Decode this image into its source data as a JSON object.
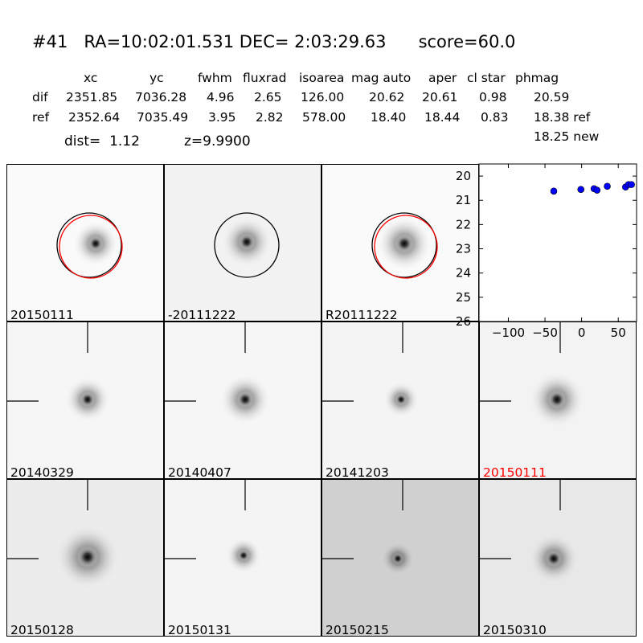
{
  "header": {
    "title": "#41   RA=10:02:01.531 DEC= 2:03:29.63      score=60.0",
    "columns": [
      "xc",
      "yc",
      "fwhm",
      "fluxrad",
      "isoarea",
      "mag auto",
      "aper",
      "cl star",
      "phmag"
    ],
    "rows": [
      {
        "label": "dif",
        "values": [
          "2351.85",
          "7036.28",
          "4.96",
          "2.65",
          "126.00",
          "20.62",
          "20.61",
          "0.98",
          "20.59"
        ]
      },
      {
        "label": "ref",
        "values": [
          "2352.64",
          "7035.49",
          "3.95",
          "2.82",
          "578.00",
          "18.40",
          "18.44",
          "0.83",
          "18.38 ref"
        ]
      }
    ],
    "phmag_new": "18.25 new",
    "dist": "dist=  1.12",
    "z": "z=9.9900"
  },
  "colors": {
    "accent": "#ff0000",
    "points": "#0000ff",
    "highlight_label": "#ff0000"
  },
  "stamps": [
    {
      "label": "20150111",
      "bg": "#fafafa",
      "circles": [
        "black",
        "red"
      ],
      "crosshair": false,
      "highlight": false
    },
    {
      "label": "-20111222",
      "bg": "#f2f2f2",
      "circles": [
        "black"
      ],
      "crosshair": false,
      "highlight": false
    },
    {
      "label": "R20111222",
      "bg": "#fafafa",
      "circles": [
        "black",
        "red"
      ],
      "crosshair": false,
      "highlight": false
    },
    {
      "label": "20140329",
      "bg": "#f6f6f6",
      "circles": [],
      "crosshair": true,
      "highlight": false
    },
    {
      "label": "20140407",
      "bg": "#f6f6f6",
      "circles": [],
      "crosshair": true,
      "highlight": false
    },
    {
      "label": "20141203",
      "bg": "#f4f4f4",
      "circles": [],
      "crosshair": true,
      "highlight": false
    },
    {
      "label": "20150111",
      "bg": "#f3f3f3",
      "circles": [],
      "crosshair": true,
      "highlight": true
    },
    {
      "label": "20150128",
      "bg": "#ececec",
      "circles": [],
      "crosshair": true,
      "highlight": false
    },
    {
      "label": "20150131",
      "bg": "#f4f4f4",
      "circles": [],
      "crosshair": true,
      "highlight": false
    },
    {
      "label": "20150215",
      "bg": "#d0d0d0",
      "circles": [],
      "crosshair": true,
      "highlight": false
    },
    {
      "label": "20150310",
      "bg": "#e8e8e8",
      "circles": [],
      "crosshair": true,
      "highlight": false
    }
  ],
  "chart_data": {
    "type": "scatter",
    "title": "",
    "xlabel": "",
    "ylabel": "",
    "xlim": [
      -140,
      75
    ],
    "ylim": [
      26,
      19.5
    ],
    "xticks": [
      -100,
      -50,
      0,
      50
    ],
    "xtick_labels": [
      "−100",
      "−50",
      "0",
      "50"
    ],
    "yticks": [
      20,
      21,
      22,
      23,
      24,
      25,
      26
    ],
    "ytick_labels": [
      "20",
      "21",
      "22",
      "23",
      "24",
      "25",
      "26"
    ],
    "y_inverted": true,
    "grid": false,
    "series": [
      {
        "marker": "circle",
        "color": "#0000ff",
        "x": [
          -38,
          -1,
          17,
          21,
          35,
          60,
          64,
          68
        ],
        "y": [
          20.62,
          20.55,
          20.52,
          20.58,
          20.42,
          20.45,
          20.35,
          20.35
        ]
      }
    ]
  }
}
